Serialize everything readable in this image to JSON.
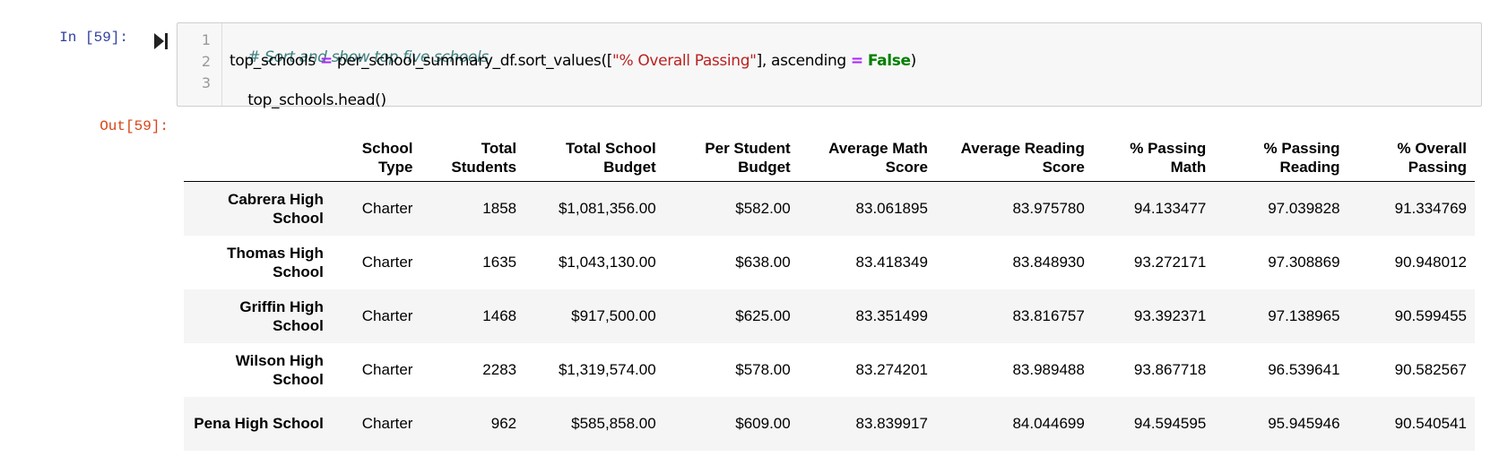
{
  "input_prompt": "In [59]:",
  "output_prompt": "Out[59]:",
  "code": {
    "line_numbers": [
      "1",
      "2",
      "3"
    ],
    "line1_comment": "# Sort and show top five schools.",
    "line2_a": "top_schools ",
    "line2_op1": "=",
    "line2_b": " per_school_summary_df.sort_values([",
    "line2_str": "\"% Overall Passing\"",
    "line2_c": "], ascending ",
    "line2_op2": "=",
    "line2_d": " ",
    "line2_kw": "False",
    "line2_e": ")",
    "line3": "top_schools.head()"
  },
  "table": {
    "headers": [
      "",
      "School Type",
      "Total Students",
      "Total School Budget",
      "Per Student Budget",
      "Average Math Score",
      "Average Reading Score",
      "% Passing Math",
      "% Passing Reading",
      "% Overall Passing"
    ],
    "rows": [
      [
        "Cabrera High School",
        "Charter",
        "1858",
        "$1,081,356.00",
        "$582.00",
        "83.061895",
        "83.975780",
        "94.133477",
        "97.039828",
        "91.334769"
      ],
      [
        "Thomas High School",
        "Charter",
        "1635",
        "$1,043,130.00",
        "$638.00",
        "83.418349",
        "83.848930",
        "93.272171",
        "97.308869",
        "90.948012"
      ],
      [
        "Griffin High School",
        "Charter",
        "1468",
        "$917,500.00",
        "$625.00",
        "83.351499",
        "83.816757",
        "93.392371",
        "97.138965",
        "90.599455"
      ],
      [
        "Wilson High School",
        "Charter",
        "2283",
        "$1,319,574.00",
        "$578.00",
        "83.274201",
        "83.989488",
        "93.867718",
        "96.539641",
        "90.582567"
      ],
      [
        "Pena High School",
        "Charter",
        "962",
        "$585,858.00",
        "$609.00",
        "83.839917",
        "84.044699",
        "94.594595",
        "95.945946",
        "90.540541"
      ]
    ]
  }
}
